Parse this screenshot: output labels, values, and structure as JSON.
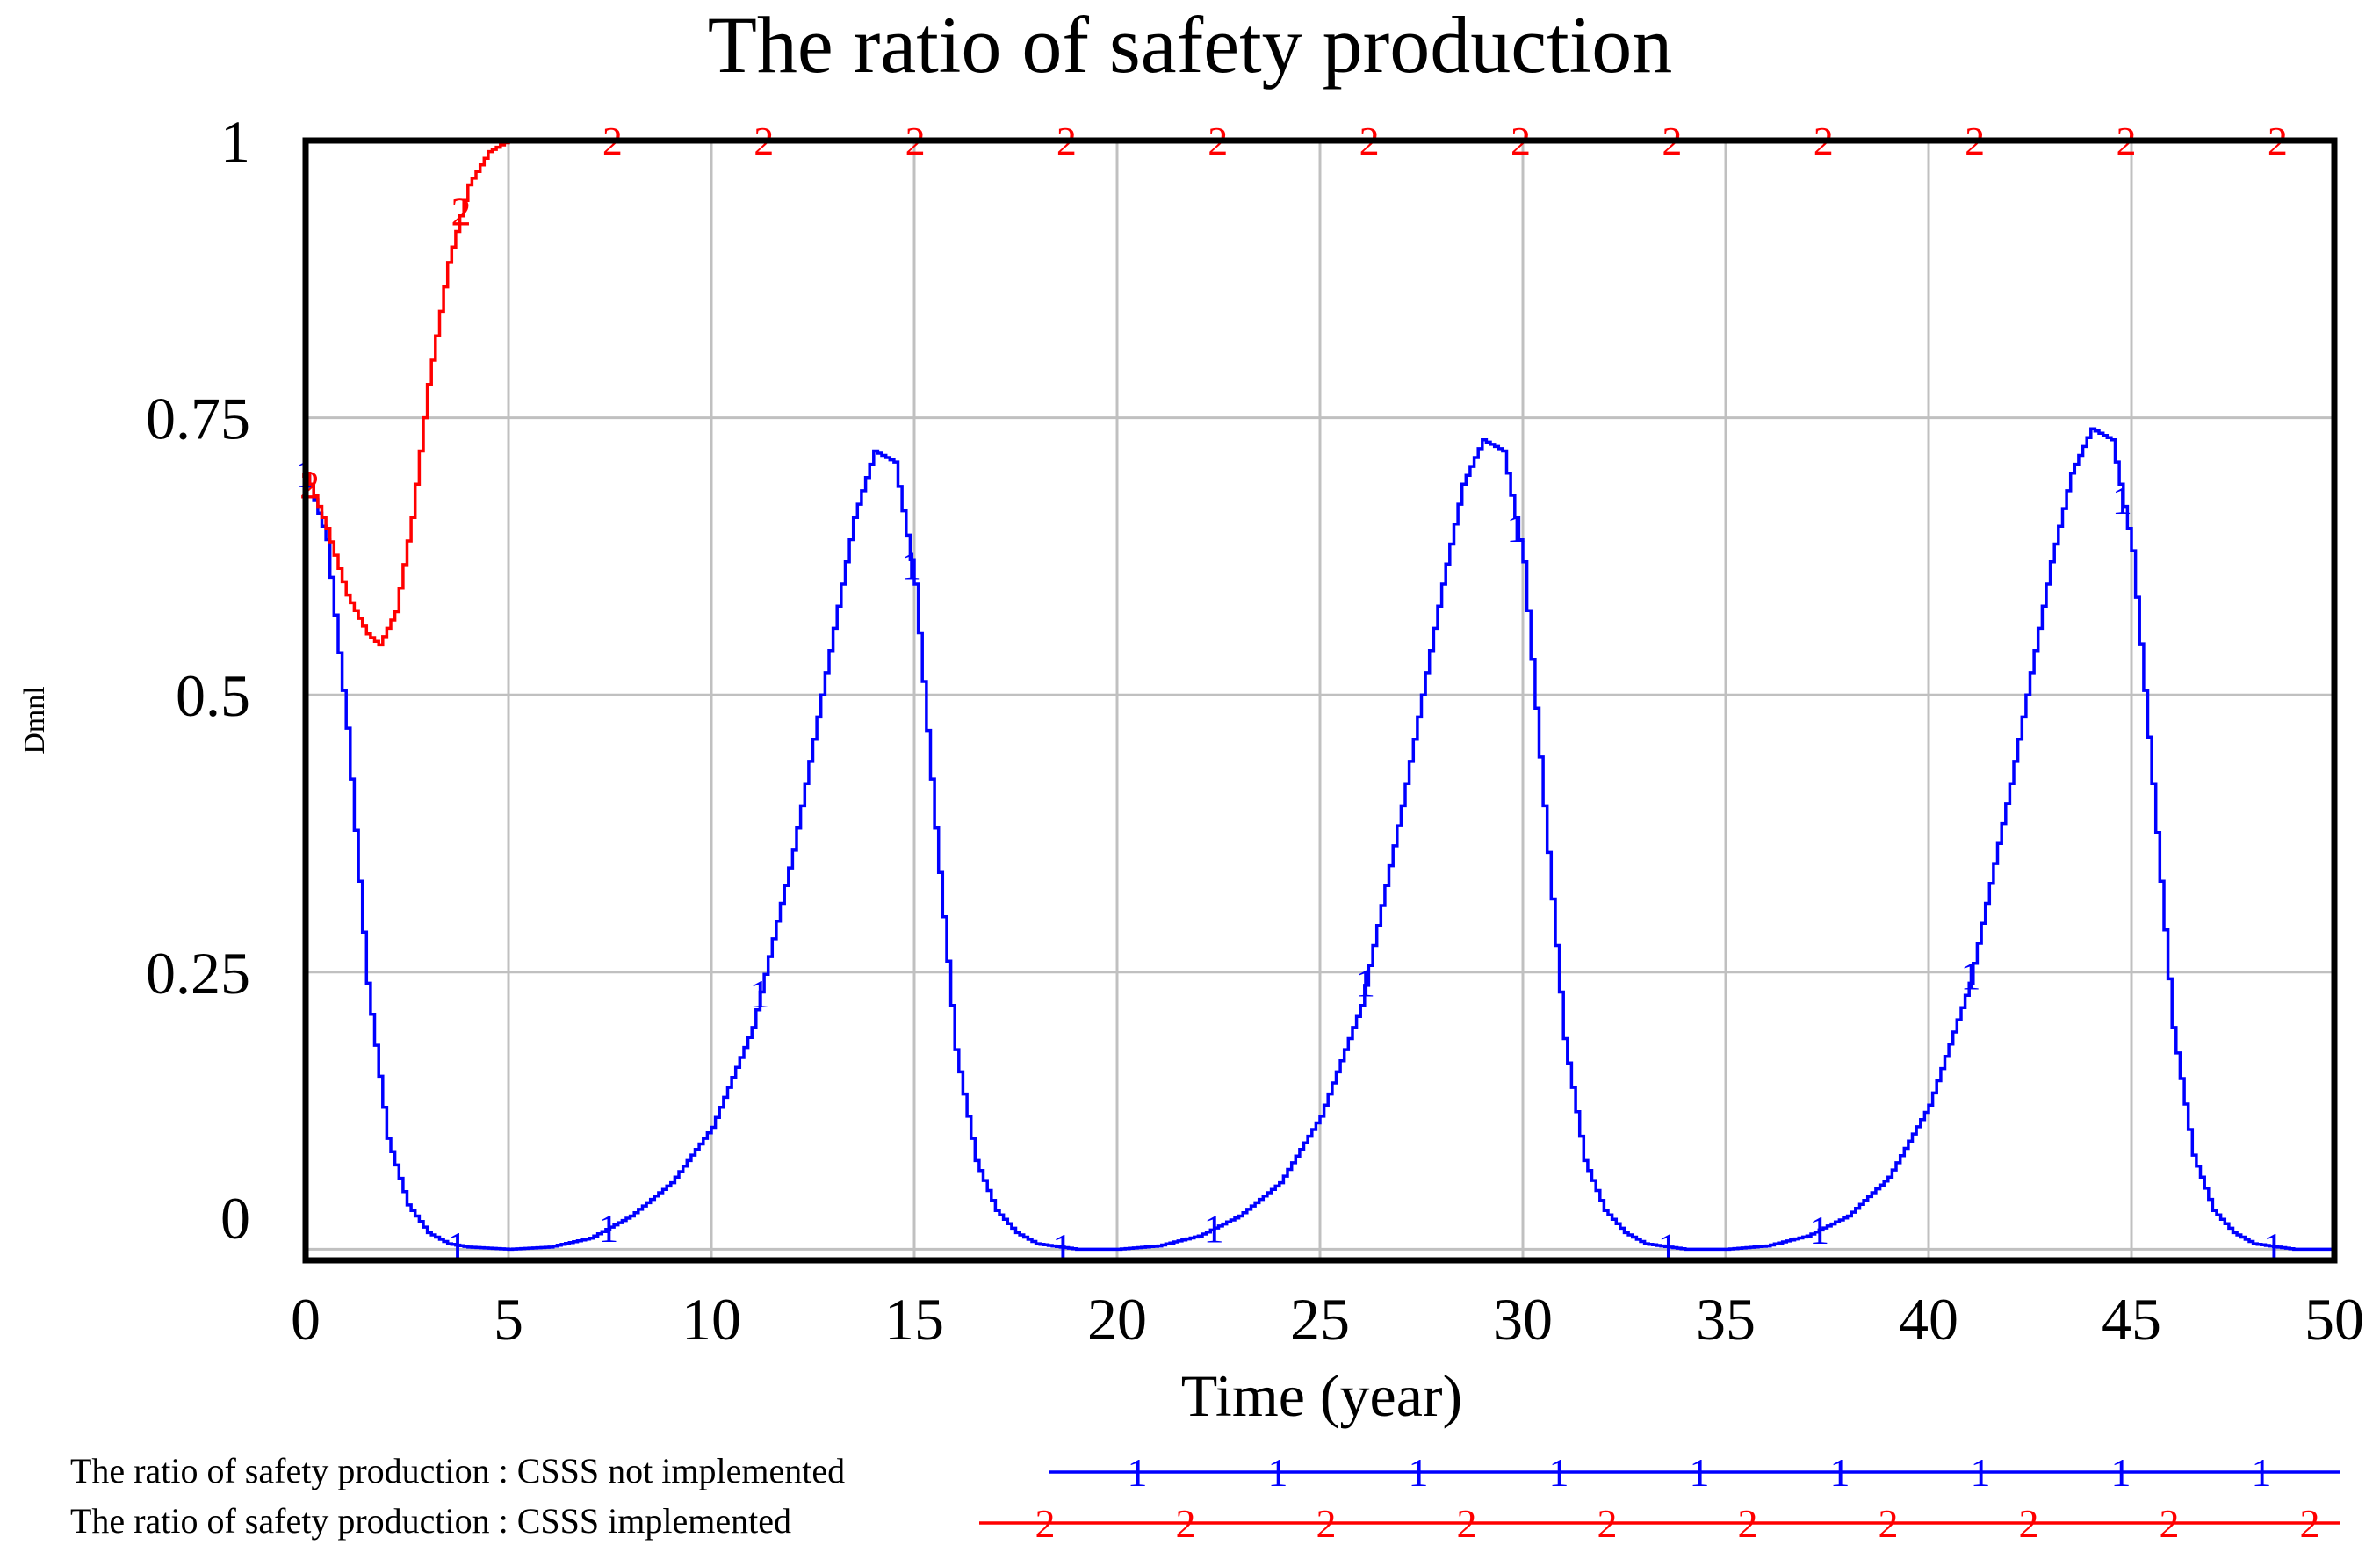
{
  "chart_data": {
    "type": "line",
    "title": "The ratio of safety production",
    "xlabel": "Time (year)",
    "ylabel": "Dmnl",
    "xlim": [
      0,
      50
    ],
    "ylim": [
      -0.01,
      1
    ],
    "grid": true,
    "x_ticks": [
      "0",
      "5",
      "10",
      "15",
      "20",
      "25",
      "30",
      "35",
      "40",
      "45",
      "50"
    ],
    "y_ticks": [
      {
        "value": 0,
        "label": "0"
      },
      {
        "value": 0.25,
        "label": "0.25"
      },
      {
        "value": 0.5,
        "label": "0.5"
      },
      {
        "value": 0.75,
        "label": "0.75"
      },
      {
        "value": 1,
        "label": "1"
      }
    ],
    "legend_position": "bottom",
    "series": [
      {
        "name": "The ratio of safety production : CSSS not implemented",
        "marker": "1",
        "color": "#0000ff",
        "x": [
          0,
          0.5,
          1,
          1.5,
          2,
          2.5,
          3,
          3.5,
          4,
          5,
          6,
          7,
          8,
          9,
          10,
          11,
          12,
          13,
          13.5,
          14,
          14.5,
          15,
          15.5,
          16,
          16.5,
          17,
          17.5,
          18,
          19,
          20,
          21,
          22,
          23,
          24,
          25,
          26,
          27,
          28,
          28.5,
          29,
          29.5,
          30,
          30.5,
          31,
          31.5,
          32,
          32.5,
          33,
          34,
          35,
          36,
          37,
          38,
          39,
          40,
          41,
          42,
          43,
          43.5,
          44,
          44.5,
          45,
          45.5,
          46,
          46.5,
          47,
          47.5,
          48,
          49,
          50
        ],
        "y": [
          0.7,
          0.64,
          0.47,
          0.24,
          0.1,
          0.04,
          0.015,
          0.005,
          0.002,
          0.0,
          0.002,
          0.01,
          0.03,
          0.06,
          0.11,
          0.2,
          0.36,
          0.56,
          0.66,
          0.72,
          0.71,
          0.6,
          0.38,
          0.18,
          0.08,
          0.035,
          0.015,
          0.005,
          0.0,
          0.0,
          0.003,
          0.012,
          0.03,
          0.06,
          0.12,
          0.22,
          0.4,
          0.6,
          0.69,
          0.73,
          0.72,
          0.62,
          0.4,
          0.19,
          0.08,
          0.035,
          0.015,
          0.005,
          0.0,
          0.0,
          0.003,
          0.012,
          0.03,
          0.065,
          0.13,
          0.24,
          0.42,
          0.62,
          0.7,
          0.74,
          0.73,
          0.63,
          0.42,
          0.2,
          0.085,
          0.035,
          0.015,
          0.005,
          0.0,
          0.0
        ]
      },
      {
        "name": "The ratio of safety production : CSSS implemented",
        "marker": "2",
        "color": "#ff0000",
        "x": [
          0,
          0.5,
          1,
          1.5,
          1.8,
          2.2,
          2.6,
          3,
          3.5,
          4,
          4.5,
          5,
          6,
          10,
          20,
          30,
          40,
          50
        ],
        "y": [
          0.7,
          0.65,
          0.59,
          0.555,
          0.545,
          0.575,
          0.66,
          0.78,
          0.89,
          0.96,
          0.99,
          1.0,
          1.0,
          1.0,
          1.0,
          1.0,
          1.0,
          1.0
        ]
      }
    ]
  }
}
